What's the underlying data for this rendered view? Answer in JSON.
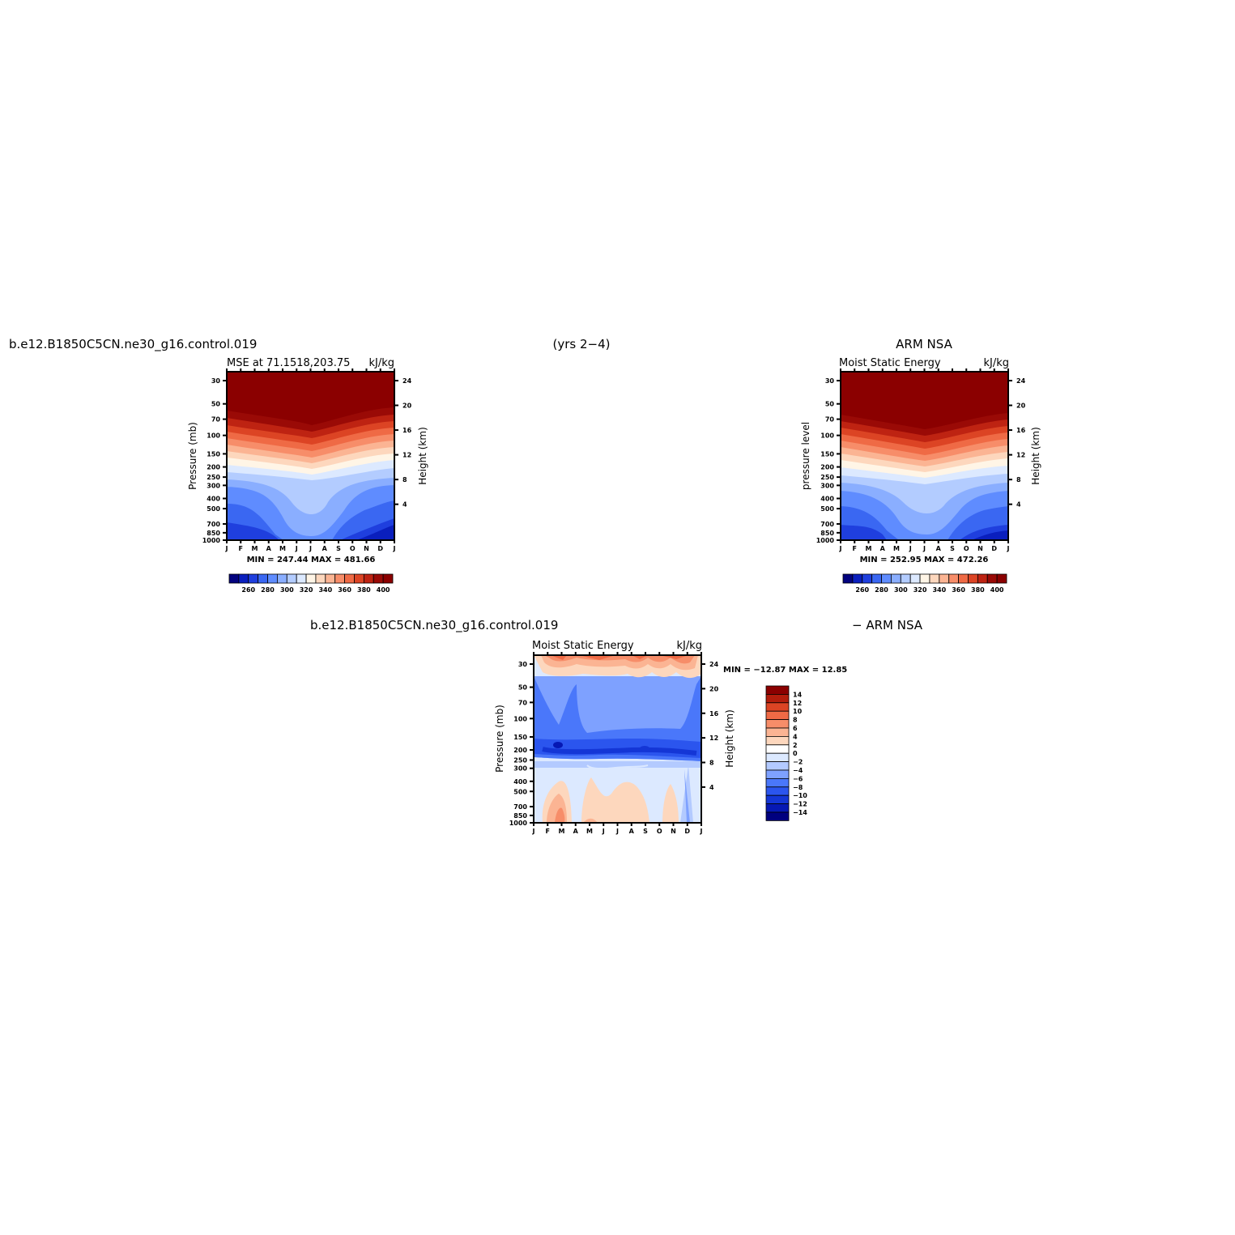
{
  "header": {
    "case_name": "b.e12.B1850C5CN.ne30_g16.control.019",
    "years": "(yrs 2−4)",
    "obs_name": "ARM  NSA"
  },
  "diff_header": {
    "case_name": "b.e12.B1850C5CN.ne30_g16.control.019",
    "suffix": "−  ARM  NSA"
  },
  "colors": {
    "abs_scale": [
      "#03037f",
      "#0a1fbe",
      "#1f3fde",
      "#3a67f2",
      "#5f8cff",
      "#8aaeff",
      "#b3ccff",
      "#dce9ff",
      "#fff5e6",
      "#fdd7bd",
      "#fbb493",
      "#f78d69",
      "#ef6a45",
      "#dc4424",
      "#be2312",
      "#9a0a06",
      "#8b0000"
    ],
    "diff_scale": [
      "#00007f",
      "#0618b4",
      "#1436d6",
      "#2b55ee",
      "#4a77fa",
      "#7ea1ff",
      "#b3caff",
      "#dce9ff",
      "#ffffff",
      "#fdd7bd",
      "#fbb493",
      "#f78d69",
      "#ef6a45",
      "#dc4424",
      "#b31d0c",
      "#8b0000"
    ]
  },
  "chart_data": [
    {
      "type": "heatmap",
      "title_left": "MSE at 71.1518,203.75",
      "title_right": "kJ/kg",
      "ylabel_left": "Pressure (mb)",
      "ylabel_right": "Height (km)",
      "x_ticks": [
        "J",
        "F",
        "M",
        "A",
        "M",
        "J",
        "J",
        "A",
        "S",
        "O",
        "N",
        "D",
        "J"
      ],
      "y_ticks": [
        "30",
        "50",
        "70",
        "100",
        "150",
        "200",
        "250",
        "300",
        "400",
        "500",
        "700",
        "850",
        "1000"
      ],
      "y_ticks_right": [
        "24",
        "20",
        "16",
        "12",
        "8",
        "4"
      ],
      "min_max": "MIN = 247.44  MAX = 481.66",
      "colorbar_labels": [
        "260",
        "280",
        "300",
        "320",
        "340",
        "360",
        "380",
        "400"
      ]
    },
    {
      "type": "heatmap",
      "title_left": "Moist Static Energy",
      "title_right": "kJ/kg",
      "ylabel_left": "pressure level",
      "ylabel_right": "Height (km)",
      "x_ticks": [
        "J",
        "F",
        "M",
        "A",
        "M",
        "J",
        "J",
        "A",
        "S",
        "O",
        "N",
        "D",
        "J"
      ],
      "y_ticks": [
        "30",
        "50",
        "70",
        "100",
        "150",
        "200",
        "250",
        "300",
        "400",
        "500",
        "700",
        "850",
        "1000"
      ],
      "y_ticks_right": [
        "24",
        "20",
        "16",
        "12",
        "8",
        "4"
      ],
      "min_max": "MIN = 252.95  MAX = 472.26",
      "colorbar_labels": [
        "260",
        "280",
        "300",
        "320",
        "340",
        "360",
        "380",
        "400"
      ]
    },
    {
      "type": "heatmap",
      "title_left": "Moist Static Energy",
      "title_right": "kJ/kg",
      "ylabel_left": "Pressure (mb)",
      "ylabel_right": "Height (km)",
      "x_ticks": [
        "J",
        "F",
        "M",
        "A",
        "M",
        "J",
        "J",
        "A",
        "S",
        "O",
        "N",
        "D",
        "J"
      ],
      "y_ticks": [
        "30",
        "50",
        "70",
        "100",
        "150",
        "200",
        "250",
        "300",
        "400",
        "500",
        "700",
        "850",
        "1000"
      ],
      "y_ticks_right": [
        "24",
        "20",
        "16",
        "12",
        "8",
        "4"
      ],
      "min_max": "MIN = −12.87  MAX =   12.85",
      "colorbar_labels": [
        "14",
        "12",
        "10",
        "8",
        "6",
        "4",
        "2",
        "0",
        "−2",
        "−4",
        "−6",
        "−8",
        "−10",
        "−12",
        "−14"
      ]
    }
  ]
}
